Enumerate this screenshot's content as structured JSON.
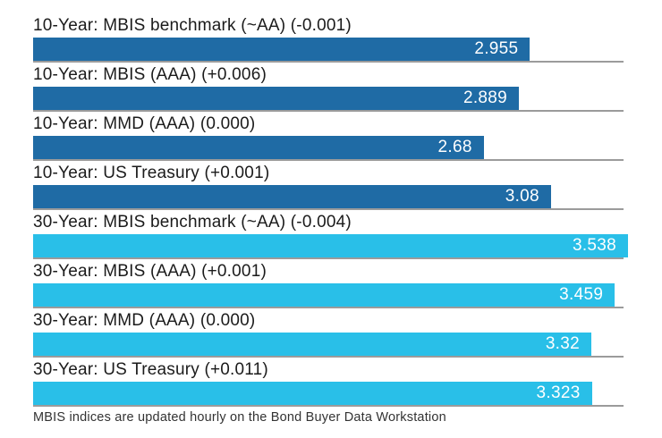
{
  "chart_data": {
    "type": "bar",
    "orientation": "horizontal",
    "title": "",
    "xlabel": "",
    "ylabel": "",
    "xlim": [
      0,
      3.538
    ],
    "grid": true,
    "legend": false,
    "categories": [
      "10-Year: MBIS benchmark (~AA) (-0.001)",
      "10-Year: MBIS (AAA) (+0.006)",
      "10-Year: MMD (AAA) (0.000)",
      "10-Year: US Treasury (+0.001)",
      "30-Year: MBIS benchmark (~AA) (-0.004)",
      "30-Year: MBIS (AAA) (+0.001)",
      "30-Year: MMD (AAA) (0.000)",
      "30-Year: US Treasury (+0.011)"
    ],
    "values": [
      2.955,
      2.889,
      2.68,
      3.08,
      3.538,
      3.459,
      3.32,
      3.323
    ],
    "value_labels": [
      "2.955",
      "2.889",
      "2.68",
      "3.08",
      "3.538",
      "3.459",
      "3.32",
      "3.323"
    ],
    "bar_colors": [
      "#1f6ba5",
      "#1f6ba5",
      "#1f6ba5",
      "#1f6ba5",
      "#29bfe8",
      "#29bfe8",
      "#29bfe8",
      "#29bfe8"
    ],
    "group_colors": {
      "10-Year": "#1f6ba5",
      "30-Year": "#29bfe8"
    },
    "footnote": "MBIS indices are updated hourly on the Bond Buyer Data Workstation"
  },
  "colors": {
    "background": "#ffffff",
    "gridline": "#9b9b9b",
    "label_text": "#1b1b1b",
    "value_text": "#ffffff",
    "footnote_text": "#333333"
  }
}
